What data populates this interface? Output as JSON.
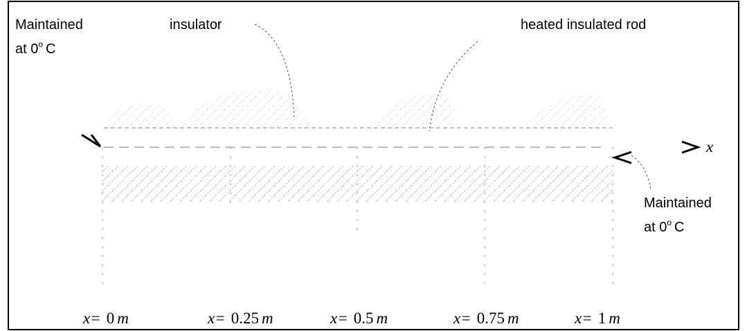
{
  "left_label": {
    "line1": "Maintained",
    "line2": "at 0",
    "degree": "o",
    "unit": "C"
  },
  "insulator_label": "insulator",
  "rod_label": "heated insulated rod",
  "axis_label": "x",
  "right_label": {
    "line1": "Maintained",
    "line2": "at 0",
    "degree": "o",
    "unit": "C"
  },
  "positions": [
    {
      "prefix": "x=",
      "value": "0",
      "unit": "m"
    },
    {
      "prefix": "x=",
      "value": "0.25",
      "unit": "m"
    },
    {
      "prefix": "x=",
      "value": "0.5",
      "unit": "m"
    },
    {
      "prefix": "x=",
      "value": "0.75",
      "unit": "m"
    },
    {
      "prefix": "x=",
      "value": "1",
      "unit": "m"
    }
  ]
}
